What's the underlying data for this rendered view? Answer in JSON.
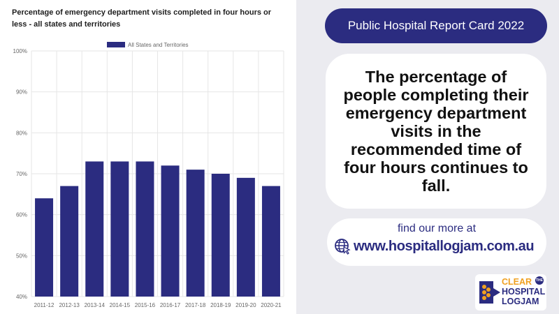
{
  "chart_data": {
    "type": "bar",
    "title": "Percentage of emergency department visits completed in four hours or less - all states and territories",
    "categories": [
      "2011-12",
      "2012-13",
      "2013-14",
      "2014-15",
      "2015-16",
      "2016-17",
      "2017-18",
      "2018-19",
      "2019-20",
      "2020-21"
    ],
    "series": [
      {
        "name": "All States and Territories",
        "values": [
          64,
          67,
          73,
          73,
          73,
          72,
          71,
          70,
          69,
          67
        ]
      }
    ],
    "ylim": [
      40,
      100
    ],
    "yticks": [
      40,
      50,
      60,
      70,
      80,
      90,
      100
    ],
    "ytick_labels": [
      "40%",
      "50%",
      "60%",
      "70%",
      "80%",
      "90%",
      "100%"
    ],
    "xlabel": "",
    "ylabel": "",
    "grid": true,
    "legend_position": "top-center",
    "bar_color": "#2b2c80"
  },
  "header": {
    "title": "Public Hospital Report Card 2022"
  },
  "message": {
    "text": "The percentage of people completing their emergency department visits in the recommended time of four hours continues to fall."
  },
  "link": {
    "prompt": "find our more at",
    "url": "www.hospitallogjam.com.au"
  },
  "logo": {
    "line1": "CLEAR",
    "the": "THE",
    "line2": "HOSPITAL",
    "line3": "LOGJAM"
  },
  "colors": {
    "brand_navy": "#2b2c80",
    "brand_orange": "#f0a020",
    "page_background": "#ebebf0"
  }
}
